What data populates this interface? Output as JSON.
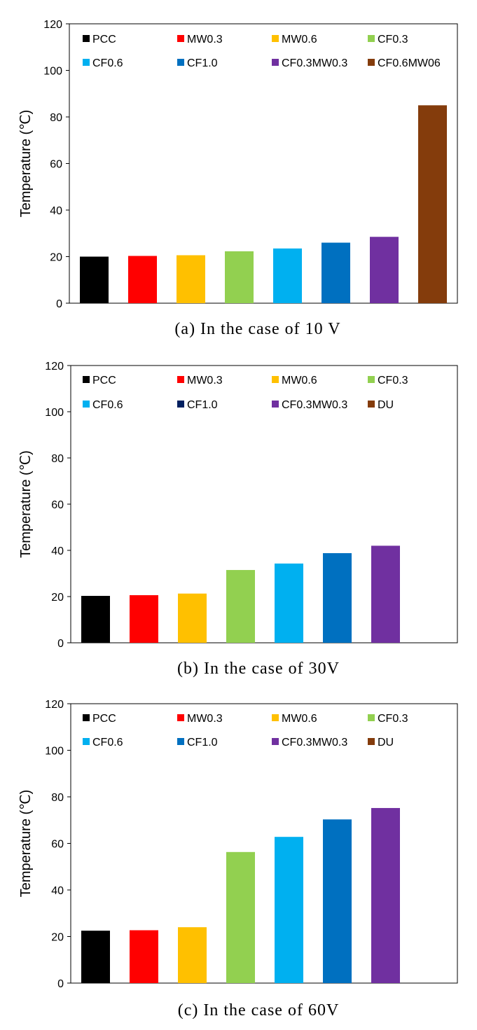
{
  "chart_data": [
    {
      "type": "bar",
      "caption": "(a) In the case of 10 V",
      "ylabel": "Temperature (℃)",
      "ylim": [
        0,
        120
      ],
      "yticks": [
        0,
        20,
        40,
        60,
        80,
        100,
        120
      ],
      "legend": [
        "PCC",
        "MW0.3",
        "MW0.6",
        "CF0.3",
        "CF0.6",
        "CF1.0",
        "CF0.3MW0.3",
        "CF0.6MW06"
      ],
      "legend_colors": [
        "#000000",
        "#ff0000",
        "#ffc000",
        "#92d050",
        "#00b0f0",
        "#0070c0",
        "#7030a0",
        "#843c0c"
      ],
      "categories": [
        "PCC",
        "MW0.3",
        "MW0.6",
        "CF0.3",
        "CF0.6",
        "CF1.0",
        "CF0.3MW0.3",
        "CF0.6MW06"
      ],
      "values": [
        20,
        20.3,
        20.6,
        22.3,
        23.5,
        26,
        28.5,
        85
      ],
      "colors": [
        "#000000",
        "#ff0000",
        "#ffc000",
        "#92d050",
        "#00b0f0",
        "#0070c0",
        "#7030a0",
        "#843c0c"
      ]
    },
    {
      "type": "bar",
      "caption": "(b) In the case of 30V",
      "ylabel": "Temperature (℃)",
      "ylim": [
        0,
        120
      ],
      "yticks": [
        0,
        20,
        40,
        60,
        80,
        100,
        120
      ],
      "legend": [
        "PCC",
        "MW0.3",
        "MW0.6",
        "CF0.3",
        "CF0.6",
        "CF1.0",
        "CF0.3MW0.3",
        "DU"
      ],
      "legend_colors": [
        "#000000",
        "#ff0000",
        "#ffc000",
        "#92d050",
        "#00b0f0",
        "#002060",
        "#7030a0",
        "#843c0c"
      ],
      "categories": [
        "PCC",
        "MW0.3",
        "MW0.6",
        "CF0.3",
        "CF0.6",
        "CF1.0",
        "CF0.3MW0.3"
      ],
      "values": [
        20.3,
        20.6,
        21.3,
        31.5,
        34.3,
        38.8,
        42
      ],
      "colors": [
        "#000000",
        "#ff0000",
        "#ffc000",
        "#92d050",
        "#00b0f0",
        "#0070c0",
        "#7030a0"
      ]
    },
    {
      "type": "bar",
      "caption": "(c) In the case of 60V",
      "ylabel": "Temperature (℃)",
      "ylim": [
        0,
        120
      ],
      "yticks": [
        0,
        20,
        40,
        60,
        80,
        100,
        120
      ],
      "legend": [
        "PCC",
        "MW0.3",
        "MW0.6",
        "CF0.3",
        "CF0.6",
        "CF1.0",
        "CF0.3MW0.3",
        "DU"
      ],
      "legend_colors": [
        "#000000",
        "#ff0000",
        "#ffc000",
        "#92d050",
        "#00b0f0",
        "#0070c0",
        "#7030a0",
        "#843c0c"
      ],
      "categories": [
        "PCC",
        "MW0.3",
        "MW0.6",
        "CF0.3",
        "CF0.6",
        "CF1.0",
        "CF0.3MW0.3"
      ],
      "values": [
        22.5,
        22.7,
        24,
        56.3,
        62.8,
        70.3,
        75.2
      ],
      "colors": [
        "#000000",
        "#ff0000",
        "#ffc000",
        "#92d050",
        "#00b0f0",
        "#0070c0",
        "#7030a0"
      ]
    }
  ]
}
